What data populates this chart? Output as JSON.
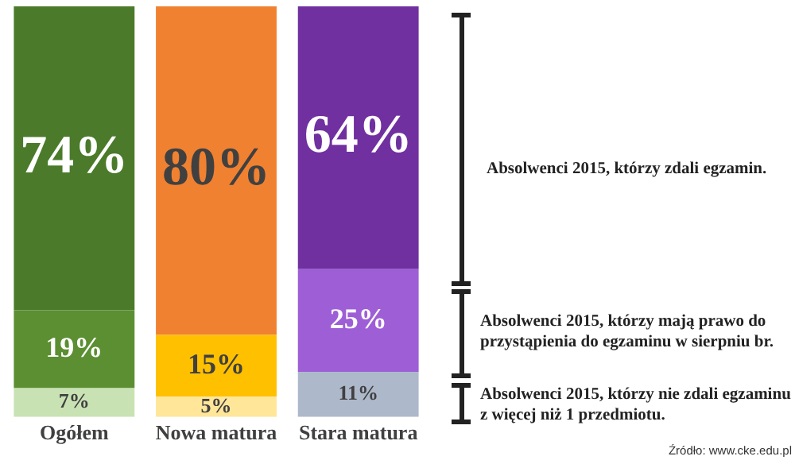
{
  "chart_data": {
    "type": "bar",
    "stacked": true,
    "categories": [
      "Ogółem",
      "Nowa matura",
      "Stara matura"
    ],
    "series": [
      {
        "colors": [
          "#c9e2b3",
          "#ffe699",
          "#adb9ca"
        ],
        "values": [
          7,
          5,
          11
        ],
        "value_labels": [
          "7%",
          "5%",
          "11%"
        ]
      },
      {
        "colors": [
          "#5b8f31",
          "#ffc000",
          "#9e5fd6"
        ],
        "values": [
          19,
          15,
          25
        ],
        "value_labels": [
          "19%",
          "15%",
          "25%"
        ]
      },
      {
        "colors": [
          "#4a7a2a",
          "#f08131",
          "#7030a0"
        ],
        "values": [
          74,
          80,
          64
        ],
        "value_labels": [
          "74%",
          "80%",
          "64%"
        ]
      }
    ],
    "annotations": [
      "Absolwenci 2015, którzy zdali egzamin.",
      "Absolwenci 2015, którzy mają prawo do przystąpienia do egzaminu w sierpniu br.",
      "Absolwenci 2015, którzy nie zdali egzaminu z więcej niż 1 przedmiotu.",
      "Źródło: www.cke.edu.pl"
    ],
    "grid": false,
    "legend": false,
    "tick_labels": "x"
  }
}
